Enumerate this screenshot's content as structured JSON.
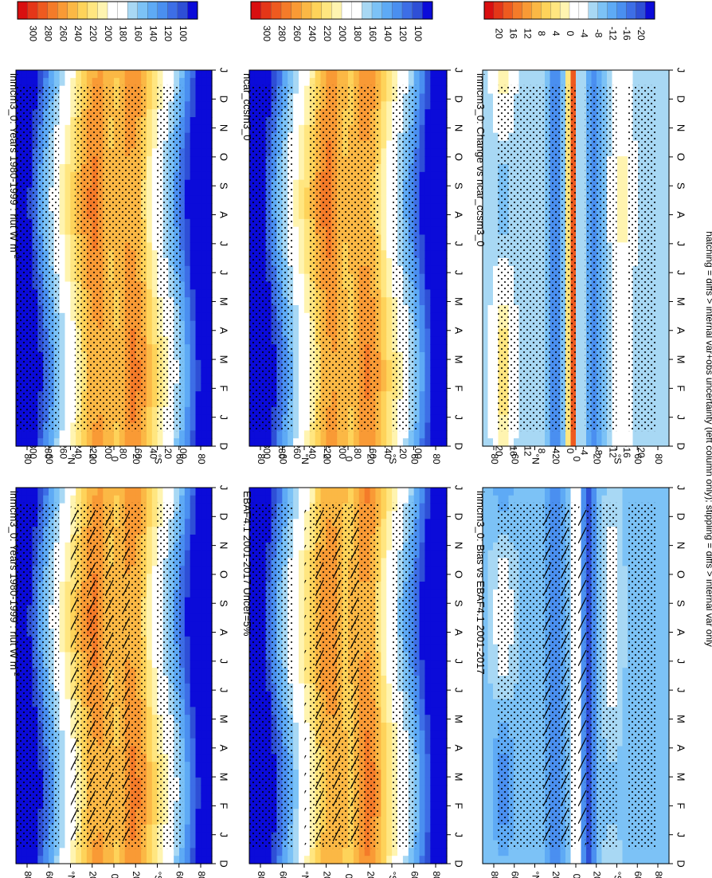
{
  "footnote": "hatching = diffs > internal var+obs uncertainty (left column only); stippling = diffs > internal var only",
  "colors": {
    "abs": [
      "#0b0bd9",
      "#2e4fd6",
      "#3d6ee6",
      "#4a8ff0",
      "#5eaaf5",
      "#7cc2f6",
      "#a8d8f4",
      "#ffffff",
      "#ffffff",
      "#fff4b0",
      "#ffe680",
      "#fed35a",
      "#fbb845",
      "#f99a35",
      "#f47b29",
      "#ee5a1f",
      "#e43618",
      "#d90f10"
    ],
    "diff": [
      "#0b0bd9",
      "#2e4fd6",
      "#3d6ee6",
      "#4a8ff0",
      "#5eaaf5",
      "#7cc2f6",
      "#a8d8f4",
      "#ffffff",
      "#ffffff",
      "#fff4b0",
      "#ffe680",
      "#fed35a",
      "#fbb845",
      "#f99a35",
      "#f47b29",
      "#ee5a1f",
      "#e43618",
      "#d90f10"
    ]
  },
  "chart_data": [
    {
      "type": "heatmap",
      "name": "panel-model-left",
      "title": "inmcm3_0: Years 1980-1999 : rlut W m",
      "title_sup": "-2",
      "month_ticks": [
        "D",
        "J",
        "F",
        "M",
        "A",
        "M",
        "J",
        "J",
        "A",
        "S",
        "O",
        "N",
        "D",
        "J"
      ],
      "lat_ticks": [
        "80",
        "60",
        "°N",
        "20",
        "0",
        "20",
        "°S",
        "60",
        "80"
      ],
      "lat_range": [
        -90,
        90
      ],
      "color_scale": "abs",
      "colorbar_labels": [
        "300",
        "280",
        "260",
        "240",
        "220",
        "200",
        "180",
        "160",
        "140",
        "120",
        "100"
      ],
      "hatching": true,
      "field": "model"
    },
    {
      "type": "heatmap",
      "name": "panel-model-right",
      "title": "inmcm3_0: Years 1980-1999 : rlut W m",
      "title_sup": "-2",
      "month_ticks": [
        "D",
        "J",
        "F",
        "M",
        "A",
        "M",
        "J",
        "J",
        "A",
        "S",
        "O",
        "N",
        "D",
        "J"
      ],
      "lat_ticks": [
        "80",
        "60",
        "°N",
        "20",
        "0",
        "20",
        "°S",
        "60",
        "80"
      ],
      "lat_range": [
        -90,
        90
      ],
      "color_scale": "abs",
      "colorbar_labels": [
        "300",
        "280",
        "260",
        "240",
        "220",
        "200",
        "180",
        "160",
        "140",
        "120",
        "100"
      ],
      "hatching": false,
      "field": "model"
    },
    {
      "type": "heatmap",
      "name": "panel-obs",
      "title": "EBAF4.1 2001-2017 Uncer=5%",
      "title_sup": "",
      "month_ticks": [
        "D",
        "J",
        "F",
        "M",
        "A",
        "M",
        "J",
        "J",
        "A",
        "S",
        "O",
        "N",
        "D",
        "J"
      ],
      "lat_ticks": [
        "80",
        "60",
        "°N",
        "20",
        "0",
        "20",
        "°S",
        "60",
        "80"
      ],
      "lat_range": [
        -90,
        90
      ],
      "color_scale": "abs",
      "colorbar_labels": [
        "300",
        "280",
        "260",
        "240",
        "220",
        "200",
        "180",
        "160",
        "140",
        "120",
        "100"
      ],
      "hatching": true,
      "field": "obs"
    },
    {
      "type": "heatmap",
      "name": "panel-ncar",
      "title": "ncar_ccsm3_0",
      "title_sup": "",
      "month_ticks": [
        "D",
        "J",
        "F",
        "M",
        "A",
        "M",
        "J",
        "J",
        "A",
        "S",
        "O",
        "N",
        "D",
        "J"
      ],
      "lat_ticks": [
        "80",
        "60",
        "°N",
        "20",
        "0",
        "20",
        "°S",
        "60",
        "80"
      ],
      "lat_range": [
        -90,
        90
      ],
      "color_scale": "abs",
      "colorbar_labels": [
        "300",
        "280",
        "260",
        "240",
        "220",
        "200",
        "180",
        "160",
        "140",
        "120",
        "100"
      ],
      "hatching": false,
      "field": "ncar"
    },
    {
      "type": "heatmap",
      "name": "panel-bias",
      "title": "inmcm3_0: Bias vs EBAF4.1 2001-2017",
      "title_sup": "",
      "month_ticks": [
        "D",
        "J",
        "F",
        "M",
        "A",
        "M",
        "J",
        "J",
        "A",
        "S",
        "O",
        "N",
        "D",
        "J"
      ],
      "lat_ticks": [
        "80",
        "60",
        "°N",
        "20",
        "0",
        "20",
        "°S",
        "60",
        "80"
      ],
      "lat_range": [
        -90,
        90
      ],
      "color_scale": "diff",
      "colorbar_labels": [
        "20",
        "16",
        "12",
        "8",
        "4",
        "0",
        "-4",
        "-8",
        "-12",
        "-16",
        "-20"
      ],
      "hatching": true,
      "field": "bias"
    },
    {
      "type": "heatmap",
      "name": "panel-change",
      "title": "inmcm3_0: Change vs ncar_ccsm3_0",
      "title_sup": "",
      "month_ticks": [
        "D",
        "J",
        "F",
        "M",
        "A",
        "M",
        "J",
        "J",
        "A",
        "S",
        "O",
        "N",
        "D",
        "J"
      ],
      "lat_ticks": [
        "80",
        "60",
        "°N",
        "20",
        "0",
        "20",
        "°S",
        "60",
        "80"
      ],
      "lat_range": [
        -90,
        90
      ],
      "color_scale": "diff",
      "colorbar_labels": [
        "20",
        "16",
        "12",
        "8",
        "4",
        "0",
        "-4",
        "-8",
        "-12",
        "-16",
        "-20"
      ],
      "hatching": false,
      "field": "change"
    }
  ]
}
